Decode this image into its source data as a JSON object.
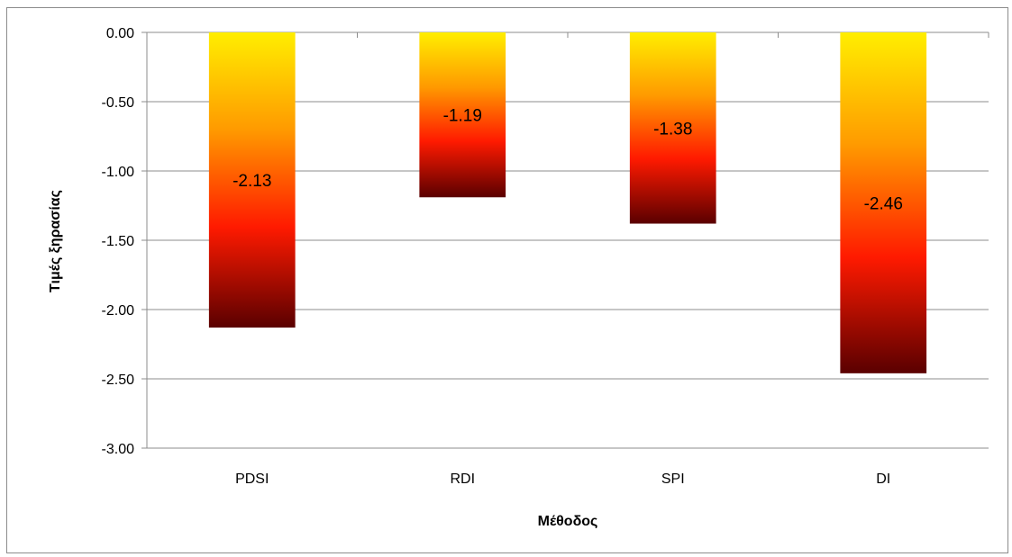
{
  "chart_data": {
    "type": "bar",
    "categories": [
      "PDSI",
      "RDI",
      "SPI",
      "DI"
    ],
    "values": [
      -2.13,
      -1.19,
      -1.38,
      -2.46
    ],
    "data_labels": [
      "-2.13",
      "-1.19",
      "-1.38",
      "-2.46"
    ],
    "title": "",
    "xlabel": "Μέθοδος",
    "ylabel": "Τιμές ξηρασίας",
    "ylim": [
      -3.0,
      0.0
    ],
    "yticks": [
      0.0,
      -0.5,
      -1.0,
      -1.5,
      -2.0,
      -2.5,
      -3.0
    ],
    "ytick_labels": [
      "0.00",
      "-0.50",
      "-1.00",
      "-1.50",
      "-2.00",
      "-2.50",
      "-3.00"
    ],
    "grid": true,
    "legend": "none",
    "bar_gradient": [
      "#ffee00",
      "#ff9a00",
      "#ff1a00",
      "#5a0000"
    ]
  }
}
